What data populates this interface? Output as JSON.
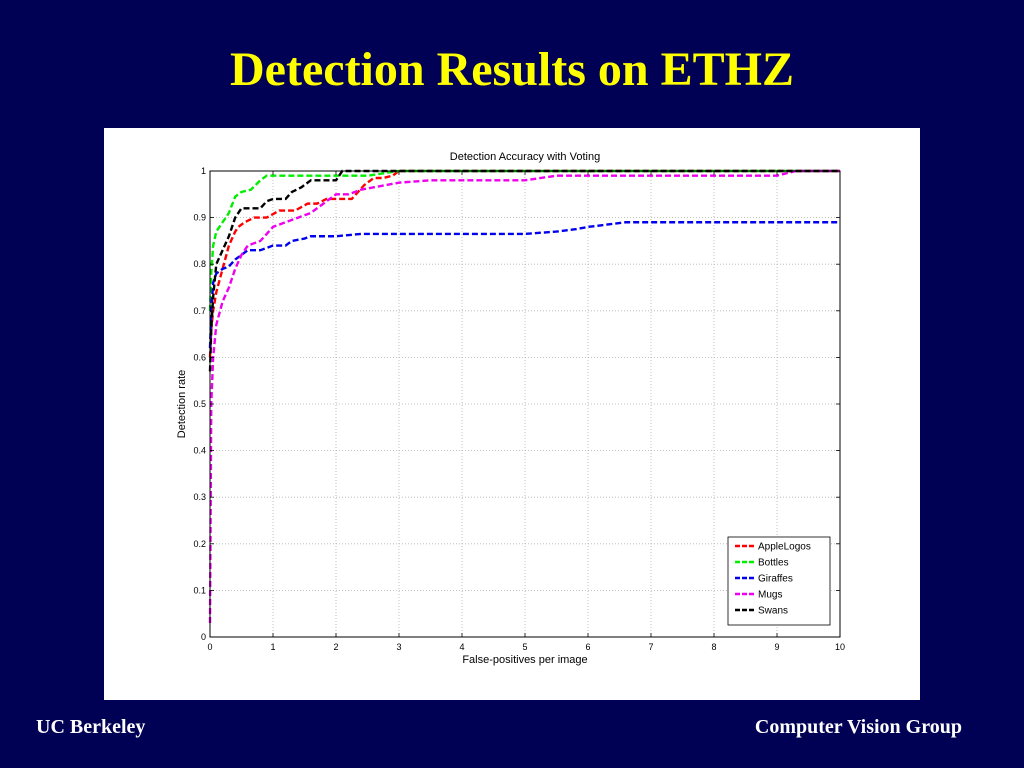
{
  "slide": {
    "title": "Detection Results on ETHZ",
    "footer_left": "UC Berkeley",
    "footer_right": "Computer Vision Group"
  },
  "chart_data": {
    "type": "line",
    "title": "Detection Accuracy with Voting",
    "xlabel": "False-positives per image",
    "ylabel": "Detection rate",
    "xlim": [
      0,
      10
    ],
    "ylim": [
      0,
      1
    ],
    "xticks": [
      "0",
      "1",
      "2",
      "3",
      "4",
      "5",
      "6",
      "7",
      "8",
      "9",
      "10"
    ],
    "yticks": [
      "0",
      "0.1",
      "0.2",
      "0.3",
      "0.4",
      "0.5",
      "0.6",
      "0.7",
      "0.8",
      "0.9",
      "1"
    ],
    "grid": true,
    "legend_position": "bottom-right",
    "series": [
      {
        "name": "AppleLogos",
        "color": "#ff0000",
        "x": [
          0,
          0.02,
          0.05,
          0.1,
          0.2,
          0.3,
          0.4,
          0.45,
          0.55,
          0.7,
          0.9,
          1.1,
          1.35,
          1.55,
          1.7,
          1.85,
          2.05,
          2.25,
          2.45,
          2.6,
          2.75,
          2.9,
          3.0,
          10
        ],
        "y": [
          0.6,
          0.66,
          0.7,
          0.74,
          0.79,
          0.84,
          0.87,
          0.88,
          0.89,
          0.9,
          0.9,
          0.915,
          0.915,
          0.93,
          0.93,
          0.94,
          0.94,
          0.94,
          0.97,
          0.985,
          0.985,
          0.99,
          1.0,
          1.0
        ]
      },
      {
        "name": "Bottles",
        "color": "#00ee00",
        "x": [
          0,
          0.02,
          0.05,
          0.1,
          0.2,
          0.3,
          0.4,
          0.5,
          0.65,
          0.8,
          0.9,
          1.2,
          1.5,
          2.0,
          2.5,
          3.0,
          10
        ],
        "y": [
          0.7,
          0.78,
          0.84,
          0.87,
          0.89,
          0.91,
          0.945,
          0.955,
          0.96,
          0.98,
          0.99,
          0.99,
          0.99,
          0.99,
          0.99,
          1.0,
          1.0
        ]
      },
      {
        "name": "Giraffes",
        "color": "#0000ee",
        "x": [
          0,
          0.02,
          0.05,
          0.1,
          0.2,
          0.3,
          0.4,
          0.5,
          0.6,
          0.8,
          1.0,
          1.2,
          1.3,
          1.5,
          1.6,
          2.0,
          2.4,
          3.0,
          4.0,
          5.0,
          5.5,
          5.8,
          6.0,
          6.3,
          6.6,
          7.0,
          10
        ],
        "y": [
          0.62,
          0.7,
          0.76,
          0.78,
          0.79,
          0.795,
          0.81,
          0.82,
          0.83,
          0.83,
          0.84,
          0.84,
          0.85,
          0.855,
          0.86,
          0.86,
          0.865,
          0.865,
          0.865,
          0.865,
          0.87,
          0.875,
          0.88,
          0.885,
          0.89,
          0.89,
          0.89
        ]
      },
      {
        "name": "Mugs",
        "color": "#ee00ee",
        "x": [
          0,
          0.02,
          0.05,
          0.1,
          0.2,
          0.3,
          0.4,
          0.5,
          0.6,
          0.8,
          1.0,
          1.2,
          1.4,
          1.6,
          1.8,
          2.0,
          2.2,
          2.4,
          2.6,
          2.8,
          3.0,
          3.5,
          4.0,
          5.0,
          5.5,
          6.0,
          7.0,
          9.0,
          9.3,
          10
        ],
        "y": [
          0.03,
          0.5,
          0.6,
          0.67,
          0.72,
          0.75,
          0.79,
          0.82,
          0.84,
          0.85,
          0.88,
          0.89,
          0.9,
          0.91,
          0.93,
          0.95,
          0.95,
          0.96,
          0.965,
          0.97,
          0.975,
          0.98,
          0.98,
          0.98,
          0.99,
          0.99,
          0.99,
          0.99,
          1.0,
          1.0
        ]
      },
      {
        "name": "Swans",
        "color": "#000000",
        "x": [
          0,
          0.02,
          0.05,
          0.1,
          0.2,
          0.3,
          0.4,
          0.5,
          0.65,
          0.8,
          0.9,
          1.0,
          1.2,
          1.3,
          1.45,
          1.6,
          1.8,
          2.0,
          2.1,
          10
        ],
        "y": [
          0.57,
          0.66,
          0.73,
          0.8,
          0.83,
          0.86,
          0.9,
          0.92,
          0.92,
          0.92,
          0.935,
          0.94,
          0.94,
          0.955,
          0.965,
          0.98,
          0.98,
          0.98,
          1.0,
          1.0
        ]
      }
    ]
  }
}
